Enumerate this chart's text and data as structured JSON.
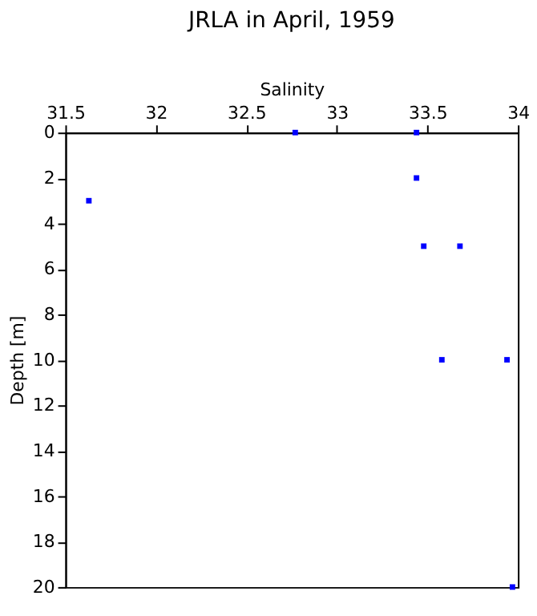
{
  "chart_data": {
    "type": "scatter",
    "title": "JRLA in April, 1959",
    "xlabel": "Salinity",
    "ylabel": "Depth [m]",
    "x": [
      32.77,
      33.44,
      33.44,
      31.63,
      33.48,
      33.68,
      33.58,
      33.94,
      33.97
    ],
    "series": [
      {
        "color": "#0000ff",
        "values": [
          0,
          0,
          2,
          3,
          5,
          5,
          10,
          10,
          20
        ]
      }
    ],
    "xlim": [
      31.5,
      34
    ],
    "xticks": [
      31.5,
      32,
      32.5,
      33,
      33.5,
      34
    ],
    "ylim": [
      20,
      0
    ],
    "yticks": [
      0,
      2,
      4,
      6,
      8,
      10,
      12,
      14,
      16,
      18,
      20
    ],
    "marker": "square",
    "grid": false,
    "legend": false
  }
}
